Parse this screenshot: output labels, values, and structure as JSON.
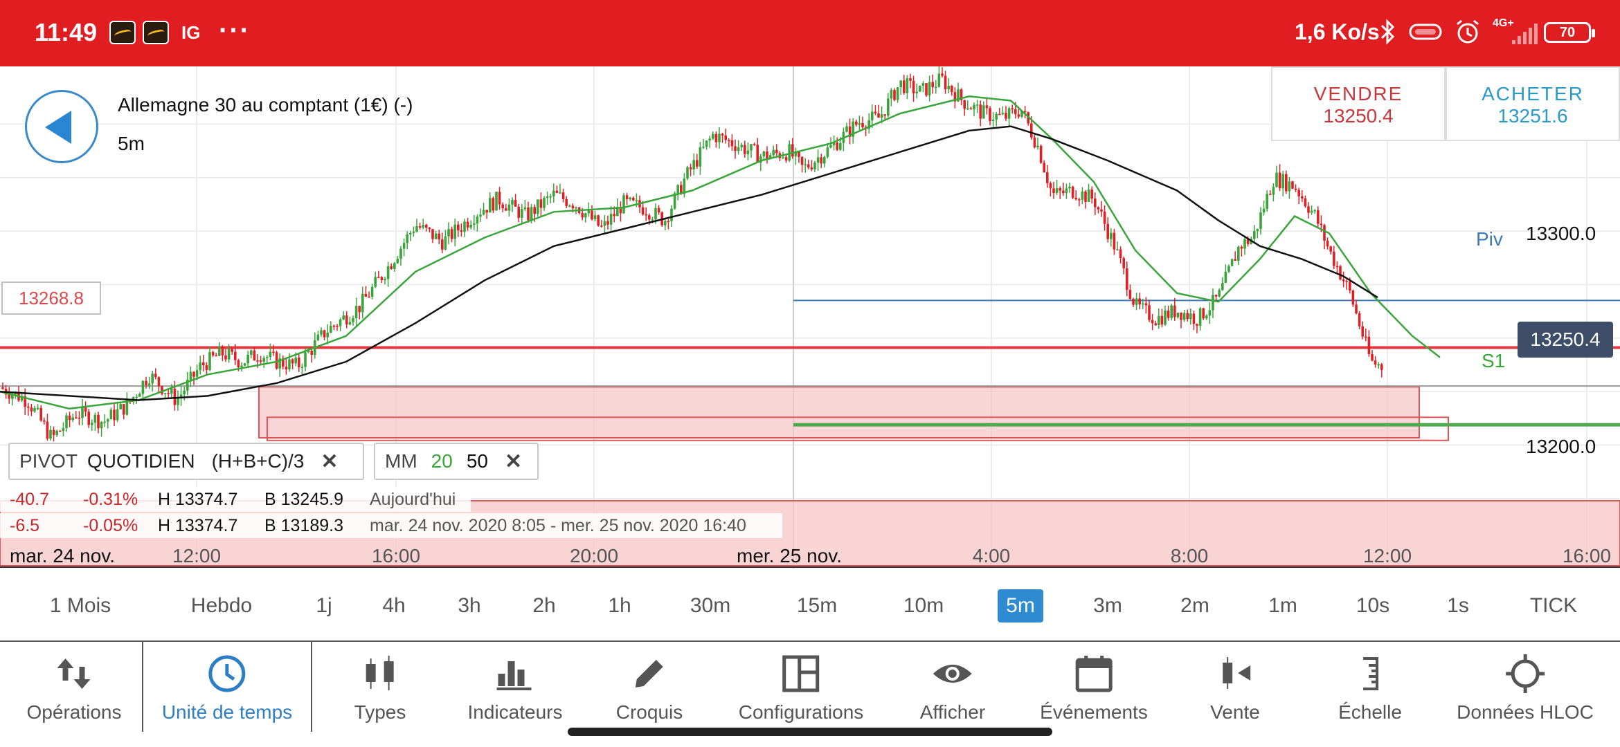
{
  "status_bar": {
    "time": "11:49",
    "notification_app": "IG",
    "more": "···",
    "speed": "1,6 Ko/s",
    "network": "4G+",
    "battery": "70",
    "icons": [
      "investing-app-icon",
      "investing-app-icon",
      "bluetooth-icon",
      "vibrate-icon",
      "alarm-icon",
      "signal-icon",
      "battery-icon"
    ],
    "bg_color": "#e01e22"
  },
  "header": {
    "instrument": "Allemagne 30 au comptant (1€) (-)",
    "timeframe": "5m",
    "sell_label": "VENDRE",
    "sell_price": "13250.4",
    "buy_label": "ACHETER",
    "buy_price": "13251.6"
  },
  "chart": {
    "price_labels": [
      "13300.0",
      "13200.0"
    ],
    "left_tag": "13268.8",
    "current_price": "13250.4",
    "pivot_label": "Piv",
    "s1_label": "S1",
    "colors": {
      "up": "#3ba43b",
      "down": "#dd2227",
      "ma20": "#3aa53a",
      "ma50": "#111111",
      "pivot": "#3a79b5",
      "zone": "#f5c5c7"
    }
  },
  "chart_data": {
    "type": "candlestick",
    "y_range": [
      13166,
      13402
    ],
    "x_labels": [
      "mar. 24 nov.",
      "12:00",
      "16:00",
      "20:00",
      "mer. 25 nov.",
      "4:00",
      "8:00",
      "12:00",
      "16:00"
    ],
    "close_path": [
      [
        0,
        13252
      ],
      [
        40,
        13246
      ],
      [
        75,
        13228
      ],
      [
        110,
        13240
      ],
      [
        150,
        13236
      ],
      [
        185,
        13244
      ],
      [
        215,
        13258
      ],
      [
        255,
        13246
      ],
      [
        290,
        13262
      ],
      [
        320,
        13268
      ],
      [
        350,
        13264
      ],
      [
        375,
        13268
      ],
      [
        400,
        13264
      ],
      [
        430,
        13262
      ],
      [
        470,
        13278
      ],
      [
        520,
        13290
      ],
      [
        560,
        13308
      ],
      [
        600,
        13328
      ],
      [
        640,
        13320
      ],
      [
        690,
        13334
      ],
      [
        720,
        13340
      ],
      [
        760,
        13332
      ],
      [
        800,
        13342
      ],
      [
        830,
        13338
      ],
      [
        870,
        13326
      ],
      [
        900,
        13338
      ],
      [
        930,
        13336
      ],
      [
        960,
        13330
      ],
      [
        990,
        13350
      ],
      [
        1030,
        13370
      ],
      [
        1060,
        13366
      ],
      [
        1100,
        13360
      ],
      [
        1140,
        13362
      ],
      [
        1160,
        13354
      ],
      [
        1200,
        13364
      ],
      [
        1240,
        13376
      ],
      [
        1270,
        13378
      ],
      [
        1300,
        13394
      ],
      [
        1330,
        13390
      ],
      [
        1360,
        13396
      ],
      [
        1390,
        13386
      ],
      [
        1420,
        13380
      ],
      [
        1450,
        13378
      ],
      [
        1475,
        13382
      ],
      [
        1500,
        13364
      ],
      [
        1520,
        13342
      ],
      [
        1550,
        13344
      ],
      [
        1580,
        13340
      ],
      [
        1610,
        13318
      ],
      [
        1640,
        13290
      ],
      [
        1670,
        13284
      ],
      [
        1700,
        13288
      ],
      [
        1730,
        13284
      ],
      [
        1760,
        13294
      ],
      [
        1790,
        13318
      ],
      [
        1810,
        13322
      ],
      [
        1840,
        13350
      ],
      [
        1870,
        13346
      ],
      [
        1900,
        13332
      ],
      [
        1920,
        13316
      ],
      [
        1950,
        13296
      ],
      [
        1980,
        13264
      ],
      [
        2010,
        13260
      ],
      [
        2050,
        13270
      ],
      [
        2080,
        13264
      ],
      [
        2100,
        13250
      ]
    ],
    "ma20": [
      [
        0,
        13250
      ],
      [
        100,
        13242
      ],
      [
        200,
        13246
      ],
      [
        300,
        13258
      ],
      [
        400,
        13264
      ],
      [
        500,
        13276
      ],
      [
        600,
        13306
      ],
      [
        700,
        13322
      ],
      [
        800,
        13334
      ],
      [
        900,
        13336
      ],
      [
        1000,
        13344
      ],
      [
        1100,
        13358
      ],
      [
        1200,
        13366
      ],
      [
        1300,
        13380
      ],
      [
        1400,
        13388
      ],
      [
        1460,
        13386
      ],
      [
        1520,
        13368
      ],
      [
        1580,
        13348
      ],
      [
        1640,
        13316
      ],
      [
        1700,
        13296
      ],
      [
        1760,
        13292
      ],
      [
        1820,
        13312
      ],
      [
        1870,
        13332
      ],
      [
        1920,
        13324
      ],
      [
        1980,
        13296
      ],
      [
        2040,
        13276
      ],
      [
        2080,
        13266
      ]
    ],
    "ma50": [
      [
        0,
        13250
      ],
      [
        100,
        13248
      ],
      [
        200,
        13246
      ],
      [
        300,
        13248
      ],
      [
        400,
        13254
      ],
      [
        500,
        13264
      ],
      [
        600,
        13282
      ],
      [
        700,
        13302
      ],
      [
        800,
        13318
      ],
      [
        900,
        13326
      ],
      [
        1000,
        13334
      ],
      [
        1100,
        13342
      ],
      [
        1200,
        13352
      ],
      [
        1300,
        13362
      ],
      [
        1400,
        13372
      ],
      [
        1460,
        13374
      ],
      [
        1520,
        13368
      ],
      [
        1600,
        13358
      ],
      [
        1700,
        13344
      ],
      [
        1760,
        13330
      ],
      [
        1820,
        13318
      ],
      [
        1880,
        13312
      ],
      [
        1940,
        13304
      ],
      [
        1990,
        13294
      ]
    ],
    "pivot": 13292.6,
    "s1": 13234.5,
    "red_line": 13270.6,
    "grey_line": 13252.6,
    "zone": [
      13228.4,
      13252.2
    ]
  },
  "indicators": {
    "pivot": {
      "name": "PIVOT",
      "period": "QUOTIDIEN",
      "formula": "(H+B+C)/3"
    },
    "mm": {
      "name": "MM",
      "p1": "20",
      "p2": "50"
    }
  },
  "stats": [
    {
      "change": "-40.7",
      "pct": "-0.31%",
      "high": "H 13374.7",
      "low": "B 13245.9",
      "period": "Aujourd'hui"
    },
    {
      "change": "-6.5",
      "pct": "-0.05%",
      "high": "H 13374.7",
      "low": "B 13189.3",
      "period": "mar. 24 nov. 2020 8:05 - mer. 25 nov. 2020 16:40"
    }
  ],
  "time_axis": [
    "mar. 24 nov.",
    "12:00",
    "16:00",
    "20:00",
    "mer. 25 nov.",
    "4:00",
    "8:00",
    "12:00",
    "16:00"
  ],
  "timeframes": [
    "1 Mois",
    "Hebdo",
    "1j",
    "4h",
    "3h",
    "2h",
    "1h",
    "30m",
    "15m",
    "10m",
    "5m",
    "3m",
    "2m",
    "1m",
    "10s",
    "1s",
    "TICK"
  ],
  "active_timeframe": "5m",
  "toolbar": [
    {
      "label": "Opérations",
      "icon": "arrows-updown-icon"
    },
    {
      "label": "Unité de temps",
      "icon": "clock-icon"
    },
    {
      "label": "Types",
      "icon": "candles-icon"
    },
    {
      "label": "Indicateurs",
      "icon": "bar-chart-icon"
    },
    {
      "label": "Croquis",
      "icon": "pencil-icon"
    },
    {
      "label": "Configurations",
      "icon": "layout-icon"
    },
    {
      "label": "Afficher",
      "icon": "eye-icon"
    },
    {
      "label": "Événements",
      "icon": "calendar-icon"
    },
    {
      "label": "Vente",
      "icon": "sell-candle-icon"
    },
    {
      "label": "Échelle",
      "icon": "scale-icon"
    },
    {
      "label": "Données HLOC",
      "icon": "crosshair-icon"
    }
  ],
  "active_toolbar": "Unité de temps"
}
